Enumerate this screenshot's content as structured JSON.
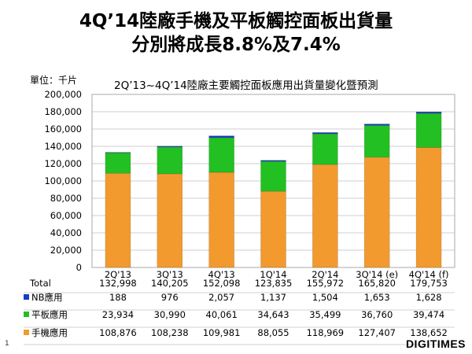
{
  "slide": {
    "title_line1": "4Q’14陸廠手機及平板觸控面板出貨量",
    "title_line2": "分別將成長8.8%及7.4%",
    "unit_label": "單位：千片",
    "chart_title": "2Q’13~4Q’14陸廠主要觸控面板應用出貨量變化暨預測",
    "page_number": "1",
    "brand": "DIGITIMES"
  },
  "chart_data": {
    "type": "bar",
    "stacked": true,
    "title": "2Q’13~4Q’14陸廠主要觸控面板應用出貨量變化暨預測",
    "ylabel": "單位：千片",
    "ylim": [
      0,
      200000
    ],
    "yticks": [
      "0",
      "20,000",
      "40,000",
      "60,000",
      "80,000",
      "100,000",
      "120,000",
      "140,000",
      "160,000",
      "180,000",
      "200,000"
    ],
    "grid": true,
    "categories": [
      "2Q'13",
      "3Q'13",
      "4Q'13",
      "1Q'14",
      "2Q'14",
      "3Q'14 (e)",
      "4Q'14 (f)"
    ],
    "total_label": "Total",
    "totals": [
      "132,998",
      "140,205",
      "152,098",
      "123,835",
      "155,972",
      "165,820",
      "179,753"
    ],
    "series": [
      {
        "name": "手機應用",
        "color": "#F29A2E",
        "values": [
          108876,
          108238,
          109981,
          88055,
          118969,
          127407,
          138652
        ],
        "labels": [
          "108,876",
          "108,238",
          "109,981",
          "88,055",
          "118,969",
          "127,407",
          "138,652"
        ]
      },
      {
        "name": "平板應用",
        "color": "#22C022",
        "values": [
          23934,
          30990,
          40061,
          34643,
          35499,
          36760,
          39474
        ],
        "labels": [
          "23,934",
          "30,990",
          "40,061",
          "34,643",
          "35,499",
          "36,760",
          "39,474"
        ]
      },
      {
        "name": "NB應用",
        "color": "#1A3CC8",
        "values": [
          188,
          976,
          2057,
          1137,
          1504,
          1653,
          1628
        ],
        "labels": [
          "188",
          "976",
          "2,057",
          "1,137",
          "1,504",
          "1,653",
          "1,628"
        ]
      }
    ],
    "table_row_order": [
      "NB應用",
      "平板應用",
      "手機應用"
    ]
  }
}
